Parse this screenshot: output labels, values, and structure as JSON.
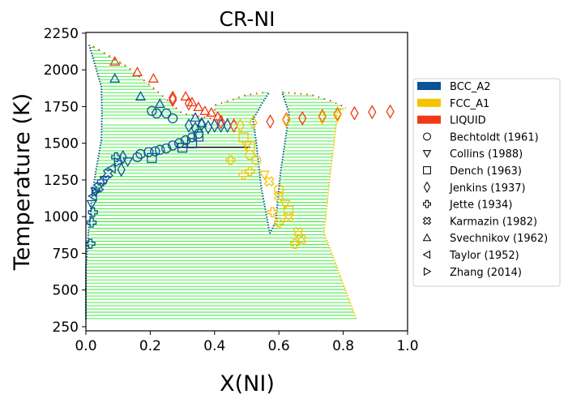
{
  "chart_data": {
    "type": "scatter",
    "title": "CR-NI",
    "xlabel": "X(NI)",
    "ylabel": "Temperature (K)",
    "xlim": [
      0.0,
      1.0
    ],
    "ylim": [
      222,
      2255
    ],
    "xticks": [
      "0.0",
      "0.2",
      "0.4",
      "0.6",
      "0.8",
      "1.0"
    ],
    "xtick_values": [
      0.0,
      0.2,
      0.4,
      0.6,
      0.8,
      1.0
    ],
    "yticks": [
      "250",
      "500",
      "750",
      "1000",
      "1250",
      "1500",
      "1750",
      "2000",
      "2250"
    ],
    "ytick_values": [
      250,
      500,
      750,
      1000,
      1250,
      1500,
      1750,
      2000,
      2250
    ],
    "legend_position": "outside-right",
    "colors": {
      "BCC_A2": "#0b5394",
      "FCC_A1": "#f5c400",
      "LIQUID": "#ee3a16",
      "tieline": "#33ee33",
      "threephase": "#000000"
    },
    "phases": [
      "BCC_A2",
      "FCC_A1",
      "LIQUID"
    ],
    "references": [
      {
        "name": "Bechtoldt (1961)",
        "marker": "circle"
      },
      {
        "name": "Collins (1988)",
        "marker": "triangle-down"
      },
      {
        "name": "Dench (1963)",
        "marker": "square"
      },
      {
        "name": "Jenkins (1937)",
        "marker": "diamond"
      },
      {
        "name": "Jette (1934)",
        "marker": "plus"
      },
      {
        "name": "Karmazin (1982)",
        "marker": "x-cross"
      },
      {
        "name": "Svechnikov (1962)",
        "marker": "triangle-up"
      },
      {
        "name": "Taylor (1952)",
        "marker": "triangle-left"
      },
      {
        "name": "Zhang (2014)",
        "marker": "triangle-right"
      }
    ],
    "boundaries": [
      {
        "phase": "BCC_A2",
        "name": "bcc_left",
        "points": [
          [
            0.01,
            2170
          ],
          [
            0.048,
            1885
          ],
          [
            0.05,
            1700
          ],
          [
            0.048,
            1520
          ],
          [
            0.03,
            1300
          ],
          [
            0.018,
            1112
          ],
          [
            0.008,
            900
          ],
          [
            0.003,
            747
          ],
          [
            0.0,
            650
          ],
          [
            0.0,
            300
          ]
        ]
      },
      {
        "phase": "LIQUID",
        "name": "liq_left",
        "points": [
          [
            0.023,
            2160
          ],
          [
            0.128,
            2023
          ],
          [
            0.22,
            1858
          ],
          [
            0.3,
            1703
          ],
          [
            0.4,
            1664
          ],
          [
            0.455,
            1648
          ]
        ]
      },
      {
        "phase": "LIQUID",
        "name": "liq_mid",
        "points": [
          [
            0.46,
            1645
          ],
          [
            0.4,
            1700
          ],
          [
            0.4,
            1760
          ],
          [
            0.46,
            1800
          ],
          [
            0.5,
            1830
          ],
          [
            0.56,
            1847
          ]
        ]
      },
      {
        "phase": "BCC_A2",
        "name": "bcc_mid_left",
        "points": [
          [
            0.572,
            885
          ],
          [
            0.545,
            1200
          ],
          [
            0.53,
            1500
          ],
          [
            0.52,
            1664
          ],
          [
            0.55,
            1780
          ],
          [
            0.57,
            1847
          ]
        ]
      },
      {
        "phase": "BCC_A2",
        "name": "bcc_mid_right",
        "points": [
          [
            0.572,
            885
          ],
          [
            0.59,
            968
          ],
          [
            0.605,
            1300
          ],
          [
            0.632,
            1703
          ],
          [
            0.61,
            1847
          ]
        ]
      },
      {
        "phase": "LIQUID",
        "name": "liq_right",
        "points": [
          [
            0.61,
            1847
          ],
          [
            0.7,
            1830
          ],
          [
            0.76,
            1790
          ],
          [
            0.81,
            1742
          ]
        ]
      },
      {
        "phase": "FCC_A1",
        "name": "fcc_right",
        "points": [
          [
            0.84,
            305
          ],
          [
            0.74,
            891
          ],
          [
            0.76,
            1300
          ],
          [
            0.783,
            1720
          ],
          [
            0.81,
            1742
          ]
        ]
      }
    ],
    "three_phase_line": {
      "T": 1473,
      "x": [
        0.283,
        0.51
      ]
    },
    "experimental": [
      {
        "ref": "Bechtoldt (1961)",
        "phase": "BCC_A2",
        "x": [
          0.205,
          0.22,
          0.25,
          0.27,
          0.16,
          0.17,
          0.195,
          0.215,
          0.23,
          0.25,
          0.27,
          0.29,
          0.31,
          0.33,
          0.35
        ],
        "T": [
          1720,
          1703,
          1703,
          1670,
          1405,
          1427,
          1440,
          1445,
          1455,
          1465,
          1485,
          1500,
          1520,
          1540,
          1565
        ]
      },
      {
        "ref": "Bechtoldt (1961)",
        "phase": "FCC_A1",
        "x": [
          0.51,
          0.53,
          0.6
        ],
        "T": [
          1420,
          1385,
          1185
        ]
      },
      {
        "ref": "Collins (1988)",
        "phase": "BCC_A2",
        "x": [
          0.018,
          0.13,
          0.06,
          0.03
        ],
        "T": [
          1085,
          1375,
          1250,
          1170
        ]
      },
      {
        "ref": "Collins (1988)",
        "phase": "FCC_A1",
        "x": [
          0.555,
          0.62,
          0.5
        ],
        "T": [
          1285,
          1085,
          1485
        ]
      },
      {
        "ref": "Dench (1963)",
        "phase": "BCC_A2",
        "x": [
          0.205,
          0.3,
          0.33,
          0.35
        ],
        "T": [
          1400,
          1470,
          1500,
          1545
        ]
      },
      {
        "ref": "Dench (1963)",
        "phase": "FCC_A1",
        "x": [
          0.49,
          0.63,
          0.51
        ],
        "T": [
          1540,
          1040,
          1480
        ]
      },
      {
        "ref": "Jenkins (1937)",
        "phase": "BCC_A2",
        "x": [
          0.32,
          0.34,
          0.36,
          0.38,
          0.4,
          0.42,
          0.44,
          0.115,
          0.11
        ],
        "T": [
          1620,
          1600,
          1630,
          1610,
          1620,
          1620,
          1620,
          1405,
          1320
        ]
      },
      {
        "ref": "Jenkins (1937)",
        "phase": "LIQUID",
        "x": [
          0.27,
          0.27,
          0.32,
          0.42,
          0.46,
          0.573,
          0.623,
          0.673,
          0.735,
          0.782,
          0.835,
          0.89,
          0.946
        ],
        "T": [
          1810,
          1795,
          1770,
          1645,
          1620,
          1648,
          1663,
          1670,
          1685,
          1699,
          1705,
          1712,
          1716
        ]
      },
      {
        "ref": "Jenkins (1937)",
        "phase": "FCC_A1",
        "x": [
          0.48,
          0.52,
          0.623,
          0.735,
          0.782
        ],
        "T": [
          1620,
          1640,
          1655,
          1675,
          1690
        ]
      },
      {
        "ref": "Jette (1934)",
        "phase": "BCC_A2",
        "x": [
          0.014,
          0.018,
          0.022,
          0.094,
          0.05
        ],
        "T": [
          815,
          960,
          1030,
          1405,
          1240
        ]
      },
      {
        "ref": "Jette (1934)",
        "phase": "FCC_A1",
        "x": [
          0.45,
          0.49,
          0.51,
          0.58,
          0.6,
          0.65
        ],
        "T": [
          1385,
          1285,
          1310,
          1030,
          960,
          815
        ]
      },
      {
        "ref": "Karmazin (1982)",
        "phase": "FCC_A1",
        "x": [
          0.57,
          0.63,
          0.66,
          0.67,
          0.6
        ],
        "T": [
          1240,
          995,
          895,
          845,
          1140
        ]
      },
      {
        "ref": "Karmazin (1982)",
        "phase": "BCC_A2",
        "x": [
          0.04,
          0.069
        ],
        "T": [
          1200,
          1295
        ]
      },
      {
        "ref": "Svechnikov (1962)",
        "phase": "BCC_A2",
        "x": [
          0.09,
          0.17,
          0.23,
          0.34,
          0.36
        ],
        "T": [
          1942,
          1819,
          1769,
          1675,
          1637
        ]
      },
      {
        "ref": "Svechnikov (1962)",
        "phase": "LIQUID",
        "x": [
          0.09,
          0.16,
          0.21,
          0.31,
          0.33,
          0.35,
          0.37,
          0.39,
          0.41
        ],
        "T": [
          2057,
          1985,
          1941,
          1819,
          1780,
          1747,
          1720,
          1709,
          1682
        ]
      },
      {
        "ref": "Taylor (1952)",
        "phase": "BCC_A2",
        "x": [
          0.08,
          0.022
        ],
        "T": [
          1330,
          1140
        ]
      },
      {
        "ref": "Zhang (2014)",
        "phase": "BCC_A2",
        "x": [
          0.1,
          0.03
        ],
        "T": [
          1370,
          1170
        ]
      }
    ]
  }
}
